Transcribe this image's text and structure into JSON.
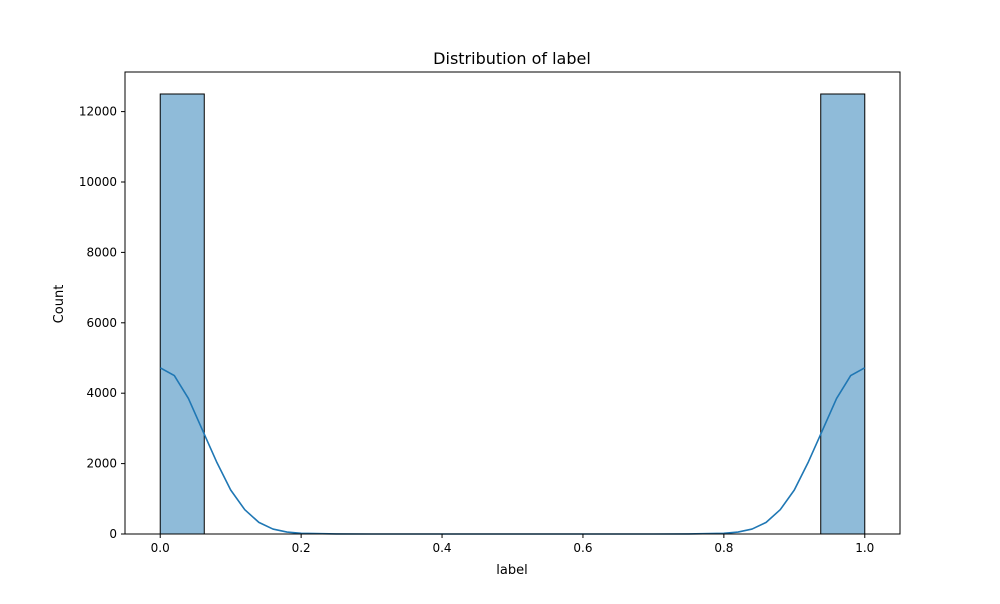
{
  "chart_data": {
    "type": "histogram",
    "title": "Distribution of label",
    "xlabel": "label",
    "ylabel": "Count",
    "xlim": [
      -0.05,
      1.05
    ],
    "ylim": [
      0,
      13125
    ],
    "x_ticks": [
      0.0,
      0.2,
      0.4,
      0.6,
      0.8,
      1.0
    ],
    "x_tick_labels": [
      "0.0",
      "0.2",
      "0.4",
      "0.6",
      "0.8",
      "1.0"
    ],
    "y_ticks": [
      0,
      2000,
      4000,
      6000,
      8000,
      10000,
      12000
    ],
    "y_tick_labels": [
      "0",
      "2000",
      "4000",
      "6000",
      "8000",
      "10000",
      "12000"
    ],
    "bins": [
      {
        "x0": 0.0,
        "x1": 0.0625,
        "count": 12500
      },
      {
        "x0": 0.9375,
        "x1": 1.0,
        "count": 12500
      }
    ],
    "kde": {
      "x": [
        0.0,
        0.02,
        0.04,
        0.06,
        0.08,
        0.1,
        0.12,
        0.14,
        0.16,
        0.18,
        0.2,
        0.25,
        0.3,
        0.4,
        0.5,
        0.6,
        0.7,
        0.75,
        0.8,
        0.82,
        0.84,
        0.86,
        0.88,
        0.9,
        0.92,
        0.94,
        0.96,
        0.98,
        1.0
      ],
      "y": [
        4720,
        4500,
        3850,
        2950,
        2050,
        1250,
        690,
        330,
        140,
        55,
        20,
        2,
        0,
        0,
        0,
        0,
        0,
        2,
        20,
        55,
        140,
        330,
        690,
        1250,
        2050,
        2950,
        3850,
        4500,
        4720
      ]
    },
    "grid": false,
    "bar_color": "#8fbbd9",
    "bar_edge_color": "#000000",
    "kde_color": "#1f77b4"
  }
}
